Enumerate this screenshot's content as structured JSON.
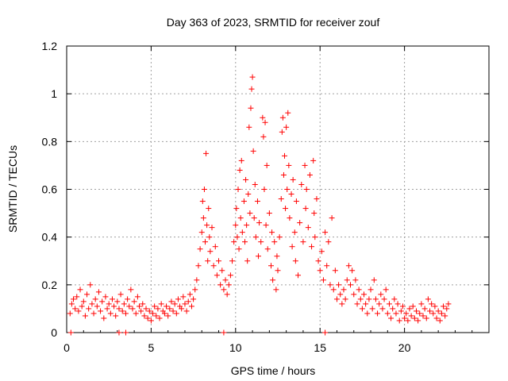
{
  "chart_data": {
    "type": "scatter",
    "title": "Day 363 of 2023, SRMTID for receiver zouf",
    "xlabel": "GPS time / hours",
    "ylabel": "SRMTID / TECUs",
    "xlim": [
      0,
      25
    ],
    "ylim": [
      0,
      1.2
    ],
    "xticks": [
      0,
      5,
      10,
      15,
      20
    ],
    "yticks": [
      0,
      0.2,
      0.4,
      0.6,
      0.8,
      1.0,
      1.2
    ],
    "xtick_labels": [
      "0",
      "5",
      "10",
      "15",
      "20"
    ],
    "ytick_labels": [
      "0",
      "0.2",
      "0.4",
      "0.6",
      "0.8",
      "1",
      "1.2"
    ],
    "grid": true,
    "marker": "+",
    "series": [
      {
        "name": "SRMTID",
        "color": "#ff0000",
        "points": [
          [
            0.2,
            0.08
          ],
          [
            0.3,
            0.12
          ],
          [
            0.4,
            0.14
          ],
          [
            0.5,
            0.1
          ],
          [
            0.6,
            0.15
          ],
          [
            0.7,
            0.09
          ],
          [
            0.8,
            0.18
          ],
          [
            0.9,
            0.11
          ],
          [
            1.0,
            0.13
          ],
          [
            1.1,
            0.07
          ],
          [
            1.2,
            0.16
          ],
          [
            1.3,
            0.1
          ],
          [
            1.4,
            0.2
          ],
          [
            1.5,
            0.12
          ],
          [
            1.6,
            0.08
          ],
          [
            1.7,
            0.14
          ],
          [
            1.8,
            0.11
          ],
          [
            1.9,
            0.17
          ],
          [
            2.0,
            0.09
          ],
          [
            2.1,
            0.13
          ],
          [
            2.2,
            0.06
          ],
          [
            2.3,
            0.15
          ],
          [
            2.4,
            0.1
          ],
          [
            2.5,
            0.12
          ],
          [
            2.6,
            0.08
          ],
          [
            2.7,
            0.14
          ],
          [
            2.8,
            0.11
          ],
          [
            2.9,
            0.07
          ],
          [
            3.0,
            0.13
          ],
          [
            3.1,
            0.1
          ],
          [
            3.2,
            0.16
          ],
          [
            3.3,
            0.09
          ],
          [
            3.4,
            0.12
          ],
          [
            3.5,
            0.08
          ],
          [
            3.6,
            0.14
          ],
          [
            3.7,
            0.11
          ],
          [
            3.8,
            0.18
          ],
          [
            3.9,
            0.1
          ],
          [
            4.0,
            0.13
          ],
          [
            4.1,
            0.08
          ],
          [
            4.2,
            0.15
          ],
          [
            4.3,
            0.11
          ],
          [
            4.4,
            0.09
          ],
          [
            4.5,
            0.12
          ],
          [
            4.6,
            0.07
          ],
          [
            4.7,
            0.1
          ],
          [
            4.8,
            0.06
          ],
          [
            4.9,
            0.09
          ],
          [
            5.0,
            0.05
          ],
          [
            5.1,
            0.08
          ],
          [
            5.2,
            0.11
          ],
          [
            5.3,
            0.07
          ],
          [
            5.4,
            0.1
          ],
          [
            5.5,
            0.06
          ],
          [
            5.6,
            0.12
          ],
          [
            5.7,
            0.09
          ],
          [
            5.8,
            0.08
          ],
          [
            5.9,
            0.11
          ],
          [
            6.0,
            0.07
          ],
          [
            6.1,
            0.1
          ],
          [
            6.2,
            0.13
          ],
          [
            6.3,
            0.09
          ],
          [
            6.4,
            0.12
          ],
          [
            6.5,
            0.08
          ],
          [
            6.6,
            0.14
          ],
          [
            6.7,
            0.11
          ],
          [
            6.8,
            0.1
          ],
          [
            6.9,
            0.15
          ],
          [
            7.0,
            0.12
          ],
          [
            7.1,
            0.09
          ],
          [
            7.2,
            0.13
          ],
          [
            7.3,
            0.16
          ],
          [
            7.4,
            0.11
          ],
          [
            7.5,
            0.14
          ],
          [
            7.6,
            0.18
          ],
          [
            7.7,
            0.22
          ],
          [
            7.8,
            0.28
          ],
          [
            7.9,
            0.35
          ],
          [
            8.0,
            0.42
          ],
          [
            8.05,
            0.55
          ],
          [
            8.1,
            0.48
          ],
          [
            8.15,
            0.6
          ],
          [
            8.2,
            0.38
          ],
          [
            8.25,
            0.75
          ],
          [
            8.3,
            0.45
          ],
          [
            8.35,
            0.3
          ],
          [
            8.4,
            0.52
          ],
          [
            8.45,
            0.4
          ],
          [
            8.5,
            0.34
          ],
          [
            8.6,
            0.44
          ],
          [
            8.7,
            0.28
          ],
          [
            8.8,
            0.36
          ],
          [
            8.9,
            0.24
          ],
          [
            9.0,
            0.3
          ],
          [
            9.1,
            0.2
          ],
          [
            9.2,
            0.26
          ],
          [
            9.3,
            0.18
          ],
          [
            9.4,
            0.22
          ],
          [
            9.5,
            0.16
          ],
          [
            9.6,
            0.2
          ],
          [
            9.7,
            0.24
          ],
          [
            9.8,
            0.3
          ],
          [
            9.9,
            0.38
          ],
          [
            10.0,
            0.45
          ],
          [
            10.05,
            0.52
          ],
          [
            10.1,
            0.4
          ],
          [
            10.15,
            0.6
          ],
          [
            10.2,
            0.35
          ],
          [
            10.25,
            0.68
          ],
          [
            10.3,
            0.48
          ],
          [
            10.35,
            0.72
          ],
          [
            10.4,
            0.42
          ],
          [
            10.5,
            0.55
          ],
          [
            10.55,
            0.38
          ],
          [
            10.6,
            0.64
          ],
          [
            10.65,
            0.45
          ],
          [
            10.7,
            0.3
          ],
          [
            10.75,
            0.58
          ],
          [
            10.8,
            0.86
          ],
          [
            10.85,
            0.5
          ],
          [
            10.9,
            0.94
          ],
          [
            10.95,
            1.02
          ],
          [
            11.0,
            1.07
          ],
          [
            11.05,
            0.76
          ],
          [
            11.1,
            0.48
          ],
          [
            11.15,
            0.62
          ],
          [
            11.2,
            0.4
          ],
          [
            11.3,
            0.55
          ],
          [
            11.35,
            0.32
          ],
          [
            11.4,
            0.46
          ],
          [
            11.5,
            0.38
          ],
          [
            11.6,
            0.9
          ],
          [
            11.65,
            0.82
          ],
          [
            11.7,
            0.6
          ],
          [
            11.75,
            0.88
          ],
          [
            11.8,
            0.45
          ],
          [
            11.85,
            0.7
          ],
          [
            11.9,
            0.35
          ],
          [
            12.0,
            0.5
          ],
          [
            12.1,
            0.28
          ],
          [
            12.15,
            0.42
          ],
          [
            12.2,
            0.22
          ],
          [
            12.3,
            0.38
          ],
          [
            12.4,
            0.18
          ],
          [
            12.45,
            0.32
          ],
          [
            12.5,
            0.26
          ],
          [
            12.6,
            0.4
          ],
          [
            12.7,
            0.56
          ],
          [
            12.75,
            0.84
          ],
          [
            12.8,
            0.9
          ],
          [
            12.85,
            0.66
          ],
          [
            12.9,
            0.74
          ],
          [
            12.95,
            0.52
          ],
          [
            13.0,
            0.86
          ],
          [
            13.05,
            0.6
          ],
          [
            13.1,
            0.92
          ],
          [
            13.15,
            0.7
          ],
          [
            13.2,
            0.48
          ],
          [
            13.3,
            0.58
          ],
          [
            13.35,
            0.36
          ],
          [
            13.4,
            0.64
          ],
          [
            13.5,
            0.42
          ],
          [
            13.55,
            0.3
          ],
          [
            13.6,
            0.55
          ],
          [
            13.7,
            0.24
          ],
          [
            13.8,
            0.46
          ],
          [
            13.9,
            0.62
          ],
          [
            14.0,
            0.38
          ],
          [
            14.1,
            0.7
          ],
          [
            14.15,
            0.52
          ],
          [
            14.2,
            0.6
          ],
          [
            14.3,
            0.44
          ],
          [
            14.4,
            0.66
          ],
          [
            14.5,
            0.36
          ],
          [
            14.6,
            0.72
          ],
          [
            14.65,
            0.5
          ],
          [
            14.7,
            0.4
          ],
          [
            14.8,
            0.56
          ],
          [
            14.9,
            0.3
          ],
          [
            15.0,
            0.26
          ],
          [
            15.1,
            0.34
          ],
          [
            15.2,
            0.22
          ],
          [
            15.3,
            0.42
          ],
          [
            15.4,
            0.28
          ],
          [
            15.5,
            0.38
          ],
          [
            15.6,
            0.2
          ],
          [
            15.7,
            0.48
          ],
          [
            15.8,
            0.18
          ],
          [
            15.9,
            0.26
          ],
          [
            16.0,
            0.14
          ],
          [
            16.1,
            0.2
          ],
          [
            16.2,
            0.16
          ],
          [
            16.3,
            0.12
          ],
          [
            16.4,
            0.18
          ],
          [
            16.5,
            0.14
          ],
          [
            16.6,
            0.22
          ],
          [
            16.7,
            0.28
          ],
          [
            16.8,
            0.2
          ],
          [
            16.9,
            0.26
          ],
          [
            17.0,
            0.16
          ],
          [
            17.1,
            0.22
          ],
          [
            17.2,
            0.12
          ],
          [
            17.3,
            0.18
          ],
          [
            17.4,
            0.14
          ],
          [
            17.5,
            0.1
          ],
          [
            17.6,
            0.16
          ],
          [
            17.7,
            0.12
          ],
          [
            17.8,
            0.08
          ],
          [
            17.9,
            0.14
          ],
          [
            18.0,
            0.18
          ],
          [
            18.1,
            0.1
          ],
          [
            18.2,
            0.22
          ],
          [
            18.3,
            0.14
          ],
          [
            18.4,
            0.08
          ],
          [
            18.5,
            0.12
          ],
          [
            18.6,
            0.16
          ],
          [
            18.7,
            0.1
          ],
          [
            18.8,
            0.14
          ],
          [
            18.9,
            0.18
          ],
          [
            19.0,
            0.08
          ],
          [
            19.1,
            0.12
          ],
          [
            19.2,
            0.06
          ],
          [
            19.3,
            0.1
          ],
          [
            19.4,
            0.14
          ],
          [
            19.5,
            0.08
          ],
          [
            19.6,
            0.12
          ],
          [
            19.7,
            0.05
          ],
          [
            19.8,
            0.09
          ],
          [
            19.9,
            0.11
          ],
          [
            20.0,
            0.06
          ],
          [
            20.1,
            0.08
          ],
          [
            20.2,
            0.05
          ],
          [
            20.3,
            0.1
          ],
          [
            20.4,
            0.07
          ],
          [
            20.5,
            0.11
          ],
          [
            20.6,
            0.06
          ],
          [
            20.7,
            0.09
          ],
          [
            20.8,
            0.05
          ],
          [
            20.9,
            0.08
          ],
          [
            21.0,
            0.12
          ],
          [
            21.1,
            0.07
          ],
          [
            21.2,
            0.1
          ],
          [
            21.3,
            0.06
          ],
          [
            21.4,
            0.14
          ],
          [
            21.5,
            0.09
          ],
          [
            21.6,
            0.12
          ],
          [
            21.7,
            0.08
          ],
          [
            21.8,
            0.11
          ],
          [
            21.9,
            0.06
          ],
          [
            22.0,
            0.09
          ],
          [
            22.1,
            0.05
          ],
          [
            22.2,
            0.08
          ],
          [
            22.3,
            0.11
          ],
          [
            22.4,
            0.07
          ],
          [
            22.5,
            0.1
          ],
          [
            22.6,
            0.12
          ],
          [
            0.25,
            0.0
          ],
          [
            3.1,
            0.0
          ],
          [
            3.5,
            0.0
          ],
          [
            9.3,
            0.0
          ],
          [
            15.3,
            0.0
          ]
        ]
      }
    ]
  }
}
